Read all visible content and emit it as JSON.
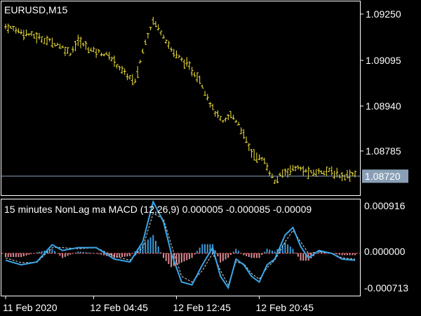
{
  "chart_data": [
    {
      "type": "bar",
      "chart_style": "ohlc-bars",
      "title": "EURUSD,M15",
      "bar_color": "#f2e33a",
      "ylim": [
        1.0866,
        1.0931
      ],
      "y_ticks": [
        "1.09250",
        "1.09095",
        "1.08940",
        "1.08785"
      ],
      "current_price": "1.08720",
      "current_price_value": 1.0872,
      "anchors": [
        [
          0,
          1.0923
        ],
        [
          10,
          1.092
        ],
        [
          20,
          1.0917
        ],
        [
          25,
          1.0914
        ],
        [
          28,
          1.0918
        ],
        [
          33,
          1.0915
        ],
        [
          40,
          1.0913
        ],
        [
          46,
          1.0907
        ],
        [
          50,
          1.0904
        ],
        [
          54,
          1.0918
        ],
        [
          57,
          1.0925
        ],
        [
          61,
          1.092
        ],
        [
          64,
          1.0915
        ],
        [
          70,
          1.091
        ],
        [
          75,
          1.0905
        ],
        [
          80,
          1.0895
        ],
        [
          84,
          1.089
        ],
        [
          87,
          1.0893
        ],
        [
          90,
          1.089
        ],
        [
          95,
          1.088
        ],
        [
          100,
          1.0877
        ],
        [
          104,
          1.087
        ],
        [
          107,
          1.0873
        ],
        [
          112,
          1.0875
        ],
        [
          118,
          1.0873
        ],
        [
          124,
          1.0874
        ],
        [
          130,
          1.0872
        ],
        [
          135,
          1.0873
        ]
      ]
    },
    {
      "type": "line",
      "title": "15 minutes NonLag ma MACD (12,26,9) 0.000005 -0.000085 -0.00009",
      "ylim": [
        -0.000713,
        0.000916
      ],
      "y_ticks": [
        "0.000916",
        "0.000000",
        "-0.000713"
      ],
      "zero_line_color": "#ff6666",
      "histogram_pos_color": "#3a9ad9",
      "histogram_neg_color": "#d98a94",
      "series": [
        {
          "color": "#3aa6e8",
          "style": "solid",
          "anchors": [
            [
              0,
              -0.00012
            ],
            [
              6,
              -0.0002
            ],
            [
              12,
              -0.00015
            ],
            [
              18,
              0.00015
            ],
            [
              22,
              5e-05
            ],
            [
              28,
              0.0001
            ],
            [
              35,
              0.0001
            ],
            [
              42,
              -0.0001
            ],
            [
              48,
              -0.00015
            ],
            [
              53,
              0.0002
            ],
            [
              57,
              0.0009
            ],
            [
              61,
              0.00055
            ],
            [
              64,
              0.0
            ],
            [
              68,
              -0.0005
            ],
            [
              72,
              -0.00055
            ],
            [
              76,
              -0.0002
            ],
            [
              80,
              0.0001
            ],
            [
              83,
              -0.0004
            ],
            [
              86,
              -0.0006
            ],
            [
              89,
              -0.0001
            ],
            [
              92,
              -0.0002
            ],
            [
              95,
              -0.0004
            ],
            [
              98,
              -0.0005
            ],
            [
              101,
              -0.0002
            ],
            [
              104,
              -0.0001
            ],
            [
              108,
              0.00032
            ],
            [
              111,
              0.00045
            ],
            [
              114,
              0.00012
            ],
            [
              117,
              -8e-05
            ],
            [
              121,
              5e-05
            ],
            [
              126,
              0.0
            ],
            [
              130,
              -0.0001
            ],
            [
              135,
              -0.00012
            ]
          ]
        },
        {
          "color": "#d8d8d8",
          "style": "dashed",
          "anchors": [
            [
              0,
              -8e-05
            ],
            [
              6,
              -0.00016
            ],
            [
              12,
              -0.00016
            ],
            [
              18,
              0.0001
            ],
            [
              22,
              0.0001
            ],
            [
              28,
              8e-05
            ],
            [
              35,
              0.0001
            ],
            [
              42,
              -5e-05
            ],
            [
              48,
              -0.00012
            ],
            [
              53,
              0.0001
            ],
            [
              57,
              0.0007
            ],
            [
              61,
              0.0006
            ],
            [
              64,
              0.00015
            ],
            [
              68,
              -0.0004
            ],
            [
              72,
              -0.0005
            ],
            [
              76,
              -0.0003
            ],
            [
              80,
              0.0
            ],
            [
              83,
              -0.0003
            ],
            [
              86,
              -0.00055
            ],
            [
              89,
              -0.00015
            ],
            [
              92,
              -0.00018
            ],
            [
              95,
              -0.00035
            ],
            [
              98,
              -0.00045
            ],
            [
              101,
              -0.00025
            ],
            [
              104,
              -0.00012
            ],
            [
              108,
              0.0002
            ],
            [
              111,
              0.0004
            ],
            [
              114,
              0.0002
            ],
            [
              117,
              0.0
            ],
            [
              121,
              3e-05
            ],
            [
              126,
              0.0
            ],
            [
              130,
              -8e-05
            ],
            [
              135,
              -0.0001
            ]
          ]
        }
      ]
    }
  ],
  "x_axis": {
    "bar_count": 136,
    "ticks": [
      {
        "label": "11 Feb 2020",
        "index": 0
      },
      {
        "label": "12 Feb 04:45",
        "index": 34
      },
      {
        "label": "12 Feb 12:45",
        "index": 66
      },
      {
        "label": "12 Feb 20:45",
        "index": 98
      }
    ]
  },
  "axis_color": "#ffffff"
}
